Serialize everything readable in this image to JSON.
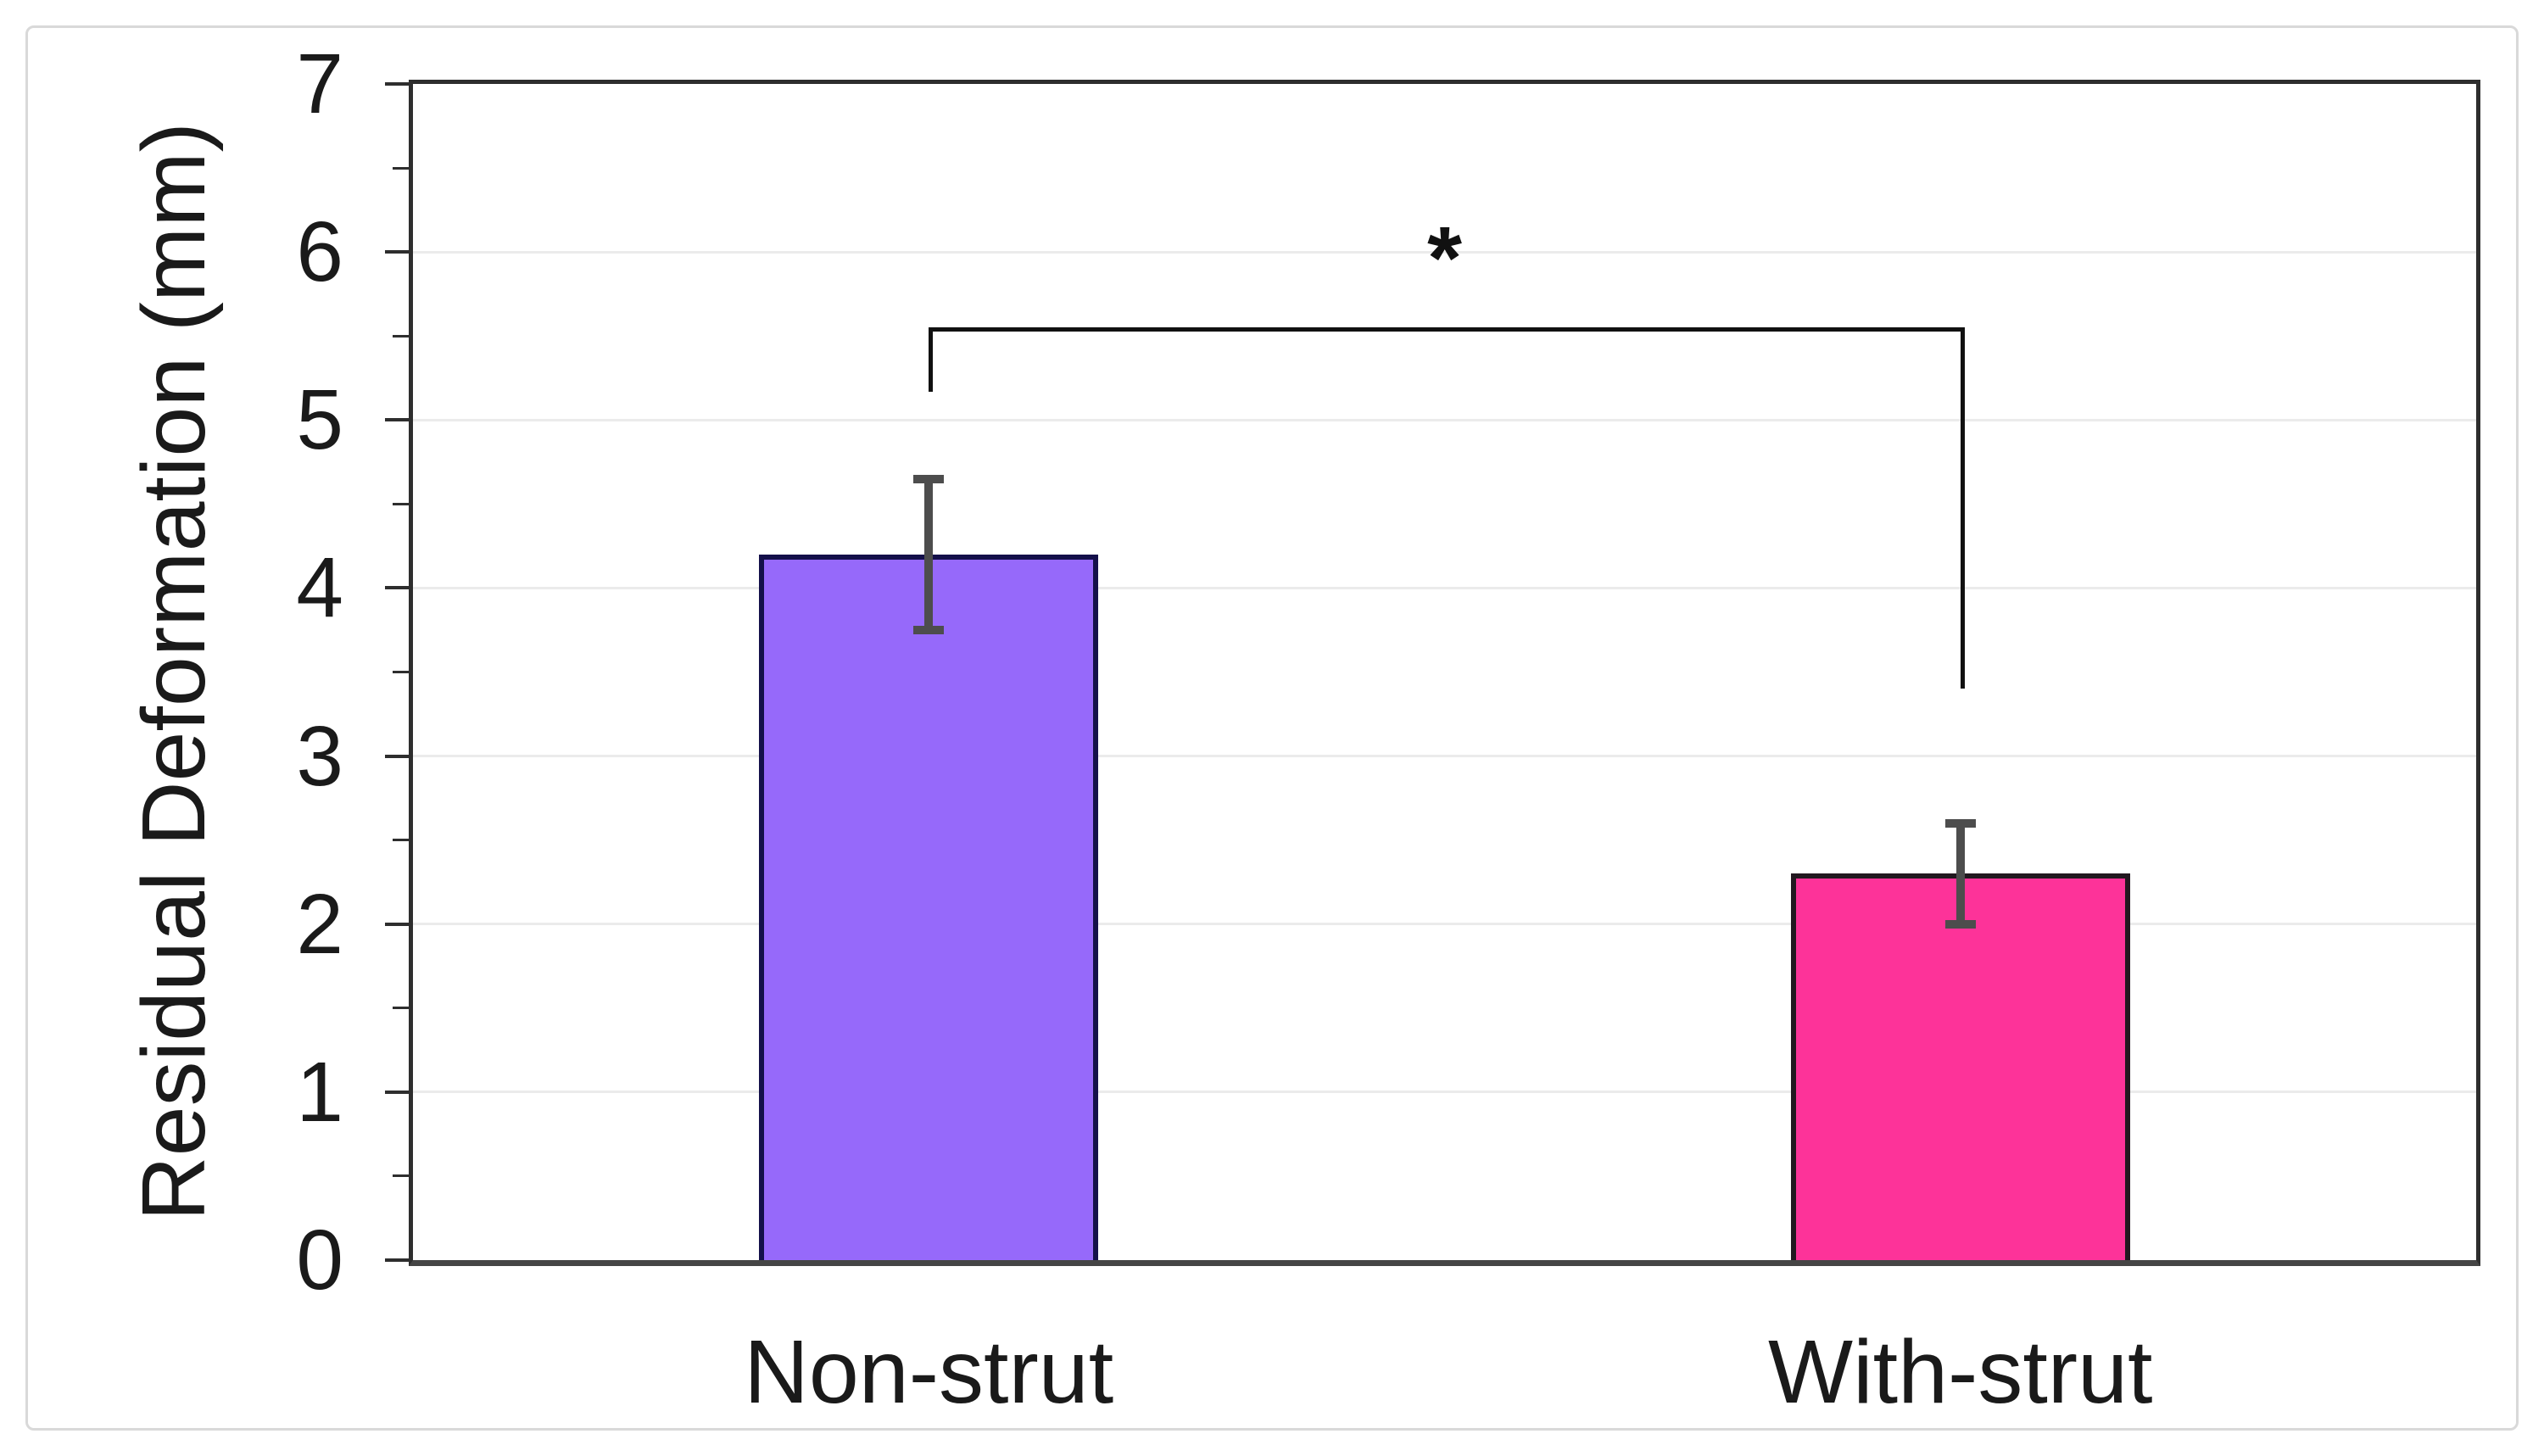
{
  "figure": {
    "background": "#ffffff",
    "border_color": "#d9d9d9"
  },
  "chart_data": {
    "type": "bar",
    "title": "",
    "xlabel": "",
    "ylabel": "Residual Deformation (mm)",
    "ylim": [
      0,
      7
    ],
    "ytick_step": 1,
    "yminor_step": 0.5,
    "grid": "horizontal-major-only",
    "legend": "none",
    "categories": [
      "Non-strut",
      "With-strut"
    ],
    "values": [
      4.2,
      2.3
    ],
    "errors": [
      0.45,
      0.3
    ],
    "tick_labels": [
      "0",
      "1",
      "2",
      "3",
      "4",
      "5",
      "6",
      "7"
    ],
    "bar_colors": [
      "#9669fa",
      "#fd3399"
    ],
    "bar_border_colors": [
      "#14104a",
      "#22181f"
    ],
    "error_bar_color": "#4d4d4d",
    "gridline_color": "#ebebeb",
    "axis_color": "#2e2e2e",
    "baseline_color": "#454545",
    "bracket_color": "#111111",
    "significance": {
      "label": "*",
      "bar_y": 5.55,
      "left_drop_to": 5.17,
      "right_drop_to": 3.4
    }
  }
}
